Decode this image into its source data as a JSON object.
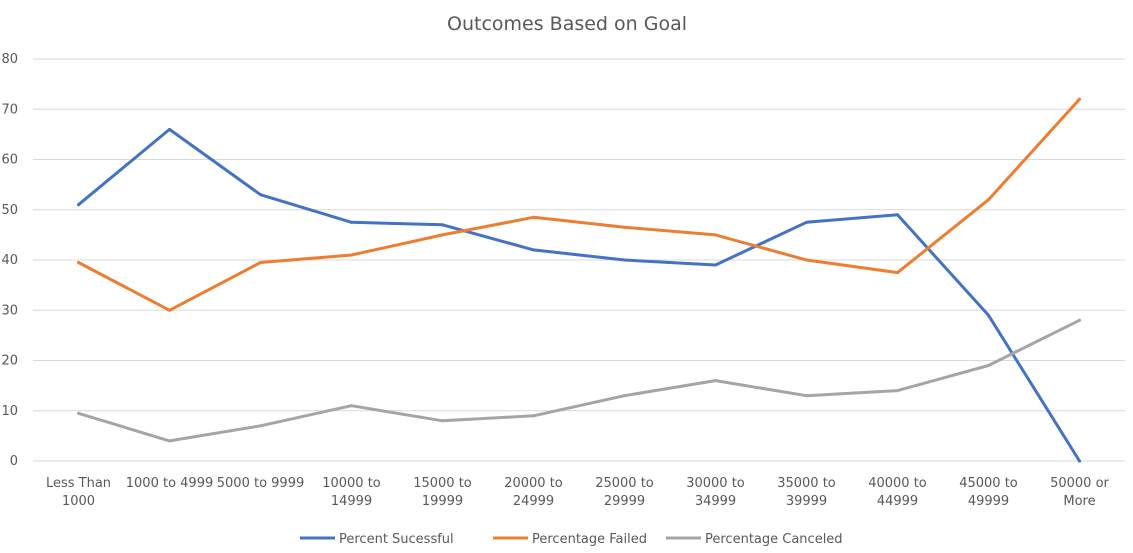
{
  "chart_data": {
    "type": "line",
    "title": "Outcomes Based on Goal",
    "xlabel": "",
    "ylabel": "",
    "ylim": [
      0,
      80
    ],
    "yticks": [
      0,
      10,
      20,
      30,
      40,
      50,
      60,
      70,
      80
    ],
    "grid": true,
    "legend_position": "bottom",
    "categories": [
      [
        "Less Than",
        "1000"
      ],
      [
        "1000 to 4999"
      ],
      [
        "5000 to 9999"
      ],
      [
        "10000 to",
        "14999"
      ],
      [
        "15000 to",
        "19999"
      ],
      [
        "20000 to",
        "24999"
      ],
      [
        "25000 to",
        "29999"
      ],
      [
        "30000 to",
        "34999"
      ],
      [
        "35000 to",
        "39999"
      ],
      [
        "40000 to",
        "44999"
      ],
      [
        "45000 to",
        "49999"
      ],
      [
        "50000 or",
        "More"
      ]
    ],
    "series": [
      {
        "name": "Percent Sucessful",
        "color": "#4472c4",
        "values": [
          51,
          66,
          53,
          47.5,
          47,
          42,
          40,
          39,
          47.5,
          49,
          29,
          0
        ]
      },
      {
        "name": "Percentage Failed",
        "color": "#ed7d31",
        "values": [
          39.5,
          30,
          39.5,
          41,
          45,
          48.5,
          46.5,
          45,
          40,
          37.5,
          52,
          72
        ]
      },
      {
        "name": "Percentage Canceled",
        "color": "#a5a5a5",
        "values": [
          9.5,
          4,
          7,
          11,
          8,
          9,
          13,
          16,
          13,
          14,
          19,
          28
        ]
      }
    ]
  }
}
